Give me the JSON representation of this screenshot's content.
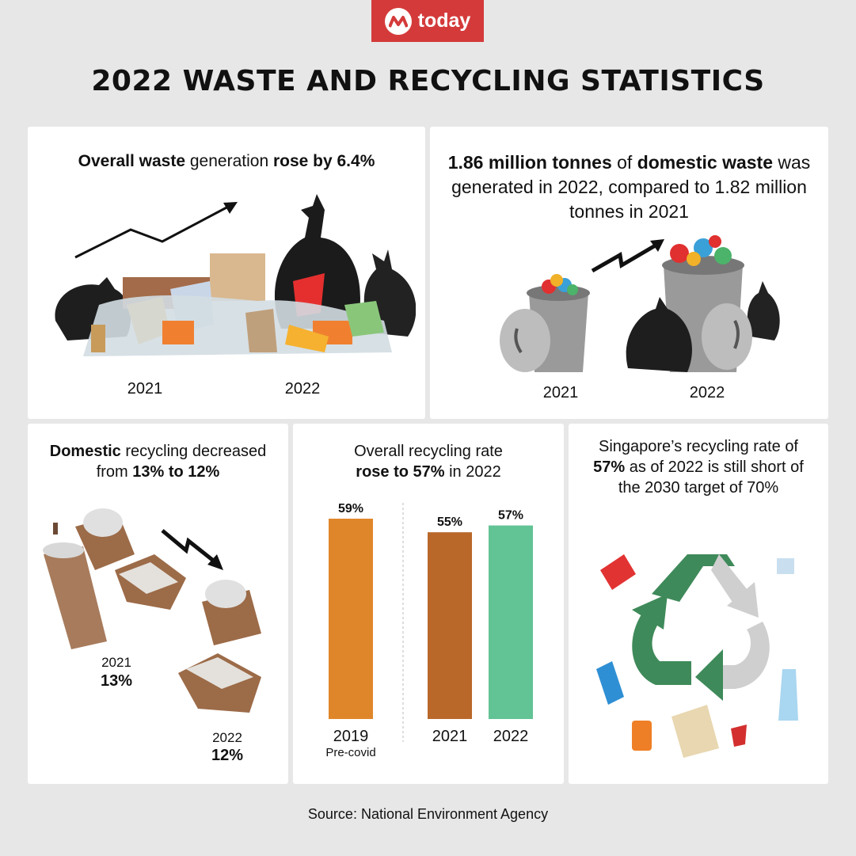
{
  "brand": {
    "logo_text": "today",
    "color": "#d43a3a"
  },
  "title": "2022 WASTE AND RECYCLING STATISTICS",
  "panel_overall_waste": {
    "caption_parts": [
      "Overall waste",
      " generation ",
      "rose by 6.4%"
    ],
    "year_left": "2021",
    "year_right": "2022"
  },
  "panel_domestic_waste": {
    "caption_parts": [
      "1.86 million tonnes",
      " of ",
      "domestic waste",
      " was generated in 2022, compared to 1.82 million tonnes in 2021"
    ],
    "year_left": "2021",
    "year_right": "2022"
  },
  "panel_domestic_recycling": {
    "caption_parts": [
      "Domestic",
      " recycling decreased from ",
      "13% to 12%"
    ],
    "label_2021_year": "2021",
    "label_2021_value": "13%",
    "label_2022_year": "2022",
    "label_2022_value": "12%"
  },
  "panel_overall_recycling": {
    "caption_parts": [
      "Overall recycling rate",
      "rose to 57%",
      " in 2022"
    ]
  },
  "panel_target": {
    "caption_parts": [
      "Singapore’s recycling rate of ",
      "57%",
      " as of 2022 is still short of the 2030 target of 70%"
    ]
  },
  "chart_data": {
    "type": "bar",
    "categories": [
      "2019",
      "2021",
      "2022"
    ],
    "category_sublabels": [
      "Pre-covid",
      "",
      ""
    ],
    "values": [
      59,
      55,
      57
    ],
    "value_labels": [
      "59%",
      "55%",
      "57%"
    ],
    "colors": [
      "#e0862a",
      "#b9682a",
      "#62c394"
    ],
    "ylim": [
      0,
      59
    ]
  },
  "source": "Source:  National Environment Agency"
}
